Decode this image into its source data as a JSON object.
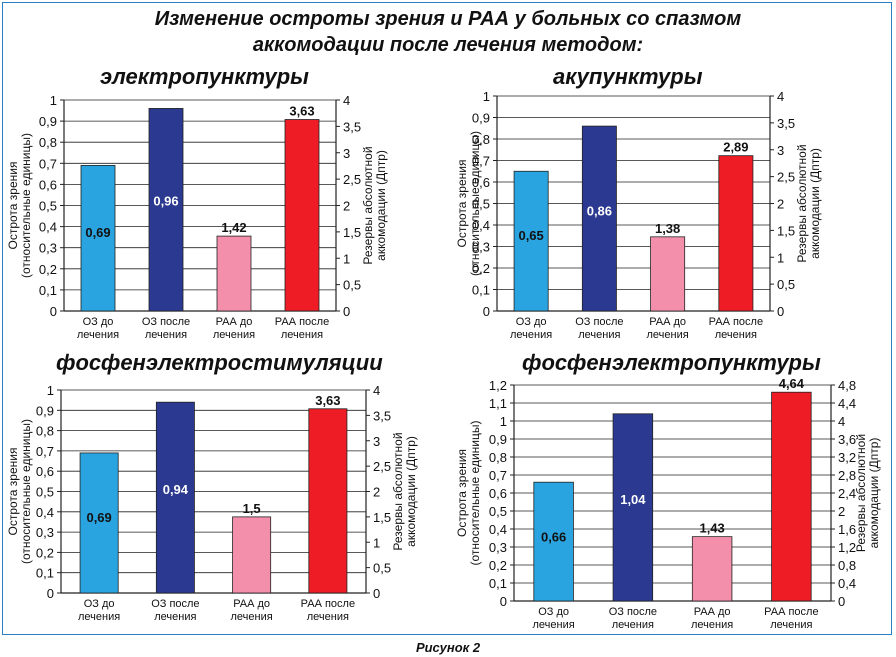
{
  "figure": {
    "title_line1": "Изменение остроты зрения и РАА у больных со спазмом",
    "title_line2": "аккомодации после лечения методом:",
    "caption": "Рисунок 2"
  },
  "colors": {
    "oz_before": "#29a4e0",
    "oz_after": "#2b3990",
    "raa_before": "#f48fab",
    "raa_after": "#ee1c25"
  },
  "chart_data": [
    {
      "type": "bar",
      "title": "электропунктуры",
      "categories": [
        "ОЗ до лечения",
        "ОЗ после лечения",
        "РАА до лечения",
        "РАА после лечения"
      ],
      "category_lines": [
        [
          "ОЗ до",
          "лечения"
        ],
        [
          "ОЗ после",
          "лечения"
        ],
        [
          "РАА до",
          "лечения"
        ],
        [
          "РАА после",
          "лечения"
        ]
      ],
      "values": [
        0.69,
        0.96,
        1.42,
        3.63
      ],
      "labels": [
        "0,69",
        "0,96",
        "1,42",
        "3,63"
      ],
      "axis": [
        "left",
        "left",
        "right",
        "right"
      ],
      "ylabel_left": [
        "Острота зрения",
        "(относительные единицы)"
      ],
      "ylabel_right": [
        "Резервы абсолютной",
        "аккомодации (Дптр)"
      ],
      "ylim_left": [
        0,
        1
      ],
      "ylim_right": [
        0,
        4
      ],
      "yticks_left": [
        "0",
        "0,1",
        "0,2",
        "0,3",
        "0,4",
        "0,5",
        "0,6",
        "0,7",
        "0,8",
        "0,9",
        "1"
      ],
      "yticks_right": [
        "0",
        "0,5",
        "1",
        "1,5",
        "2",
        "2,5",
        "3",
        "3,5",
        "4"
      ],
      "grid": true
    },
    {
      "type": "bar",
      "title": "акупунктуры",
      "categories": [
        "ОЗ до лечения",
        "ОЗ после лечения",
        "РАА до лечения",
        "РАА после лечения"
      ],
      "category_lines": [
        [
          "ОЗ до",
          "лечения"
        ],
        [
          "ОЗ после",
          "лечения"
        ],
        [
          "РАА до",
          "лечения"
        ],
        [
          "РАА после",
          "лечения"
        ]
      ],
      "values": [
        0.65,
        0.86,
        1.38,
        2.89
      ],
      "labels": [
        "0,65",
        "0,86",
        "1,38",
        "2,89"
      ],
      "axis": [
        "left",
        "left",
        "right",
        "right"
      ],
      "ylabel_left": [
        "Острота зрения",
        "(относительные единицы)"
      ],
      "ylabel_right": [
        "Резервы абсолютной",
        "аккомодации (Дптр)"
      ],
      "ylim_left": [
        0,
        1
      ],
      "ylim_right": [
        0,
        4
      ],
      "yticks_left": [
        "0",
        "0,1",
        "0,2",
        "0,3",
        "0,4",
        "0,5",
        "0,6",
        "0,7",
        "0,8",
        "0,9",
        "1"
      ],
      "yticks_right": [
        "0",
        "0,5",
        "1",
        "1,5",
        "2",
        "2,5",
        "3",
        "3,5",
        "4"
      ],
      "grid": true
    },
    {
      "type": "bar",
      "title": "фосфенэлектростимуляции",
      "categories": [
        "ОЗ до лечения",
        "ОЗ после лечения",
        "РАА до лечения",
        "РАА после лечения"
      ],
      "category_lines": [
        [
          "ОЗ до",
          "лечения"
        ],
        [
          "ОЗ после",
          "лечения"
        ],
        [
          "РАА до",
          "лечения"
        ],
        [
          "РАА после",
          "лечения"
        ]
      ],
      "values": [
        0.69,
        0.94,
        1.5,
        3.63
      ],
      "labels": [
        "0,69",
        "0,94",
        "1,5",
        "3,63"
      ],
      "axis": [
        "left",
        "left",
        "right",
        "right"
      ],
      "ylabel_left": [
        "Острота зрения",
        "(относительные единицы)"
      ],
      "ylabel_right": [
        "Резервы абсолютной",
        "аккомодации (Дптр)"
      ],
      "ylim_left": [
        0,
        1
      ],
      "ylim_right": [
        0,
        4
      ],
      "yticks_left": [
        "0",
        "0,1",
        "0,2",
        "0,3",
        "0,4",
        "0,5",
        "0,6",
        "0,7",
        "0,8",
        "0,9",
        "1"
      ],
      "yticks_right": [
        "0",
        "0,5",
        "1",
        "1,5",
        "2",
        "2,5",
        "3",
        "3,5",
        "4"
      ],
      "grid": true
    },
    {
      "type": "bar",
      "title": "фосфенэлектропунктуры",
      "categories": [
        "ОЗ до лечения",
        "ОЗ после лечения",
        "РАА до лечения",
        "РАА после лечения"
      ],
      "category_lines": [
        [
          "ОЗ до",
          "лечения"
        ],
        [
          "ОЗ после",
          "лечения"
        ],
        [
          "РАА до",
          "лечения"
        ],
        [
          "РАА после",
          "лечения"
        ]
      ],
      "values": [
        0.66,
        1.04,
        1.43,
        4.64
      ],
      "labels": [
        "0,66",
        "1,04",
        "1,43",
        "4,64"
      ],
      "axis": [
        "left",
        "left",
        "right",
        "right"
      ],
      "ylabel_left": [
        "Острота зрения",
        "(относительные единицы)"
      ],
      "ylabel_right": [
        "Резервы абсолютной",
        "аккомодации (Дптр)"
      ],
      "ylim_left": [
        0,
        1.2
      ],
      "ylim_right": [
        0,
        4.8
      ],
      "yticks_left": [
        "0",
        "0,1",
        "0,2",
        "0,3",
        "0,4",
        "0,5",
        "0,6",
        "0,7",
        "0,8",
        "0,9",
        "1",
        "1,1",
        "1,2"
      ],
      "yticks_right": [
        "0",
        "0,4",
        "0,8",
        "1,2",
        "1,6",
        "2",
        "2,4",
        "2,8",
        "3,2",
        "3,6",
        "4",
        "4,4",
        "4,8"
      ],
      "grid": true
    }
  ]
}
